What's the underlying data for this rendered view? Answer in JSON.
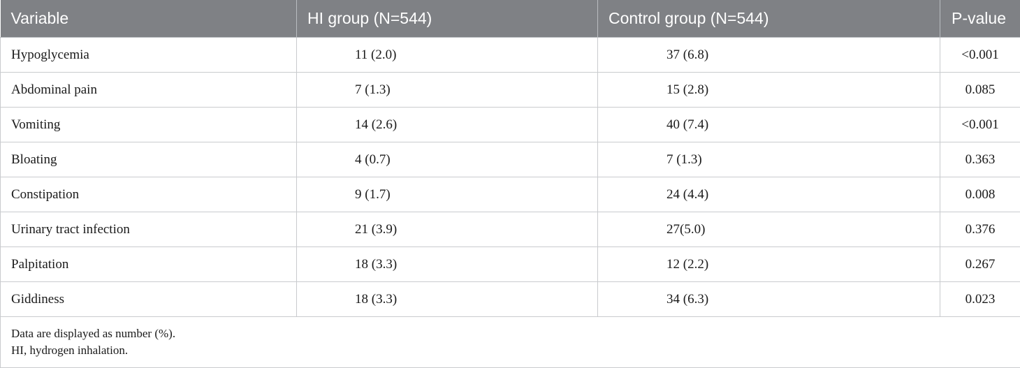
{
  "table": {
    "headers": [
      "Variable",
      "HI group (N=544)",
      "Control group (N=544)",
      "P-value"
    ],
    "rows": [
      {
        "variable": "Hypoglycemia",
        "hi": "11 (2.0)",
        "control": "37 (6.8)",
        "p": "<0.001"
      },
      {
        "variable": "Abdominal pain",
        "hi": "7 (1.3)",
        "control": "15 (2.8)",
        "p": "0.085"
      },
      {
        "variable": "Vomiting",
        "hi": "14 (2.6)",
        "control": "40 (7.4)",
        "p": "<0.001"
      },
      {
        "variable": "Bloating",
        "hi": "4 (0.7)",
        "control": "7 (1.3)",
        "p": "0.363"
      },
      {
        "variable": "Constipation",
        "hi": "9 (1.7)",
        "control": "24 (4.4)",
        "p": "0.008"
      },
      {
        "variable": "Urinary tract infection",
        "hi": "21 (3.9)",
        "control": "27(5.0)",
        "p": "0.376"
      },
      {
        "variable": "Palpitation",
        "hi": "18 (3.3)",
        "control": "12 (2.2)",
        "p": "0.267"
      },
      {
        "variable": "Giddiness",
        "hi": "18 (3.3)",
        "control": "34 (6.3)",
        "p": "0.023"
      }
    ],
    "footnotes": [
      "Data are displayed as number (%).",
      "HI, hydrogen inhalation."
    ]
  },
  "colors": {
    "header_bg": "#7f8185",
    "header_text": "#ffffff",
    "border": "#c9cbce"
  }
}
